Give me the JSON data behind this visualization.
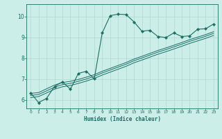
{
  "xlabel": "Humidex (Indice chaleur)",
  "bg_color": "#cceee8",
  "line_color": "#1a6e64",
  "grid_color": "#b0d8d2",
  "xlim": [
    -0.5,
    23.5
  ],
  "ylim": [
    5.6,
    10.6
  ],
  "xticks": [
    0,
    1,
    2,
    3,
    4,
    5,
    6,
    7,
    8,
    9,
    10,
    11,
    12,
    13,
    14,
    15,
    16,
    17,
    18,
    19,
    20,
    21,
    22,
    23
  ],
  "yticks": [
    6,
    7,
    8,
    9,
    10
  ],
  "curve1_x": [
    0,
    1,
    2,
    3,
    4,
    5,
    6,
    7,
    8,
    9,
    10,
    11,
    12,
    13,
    14,
    15,
    16,
    17,
    18,
    19,
    20,
    21,
    22,
    23
  ],
  "curve1_y": [
    6.35,
    5.88,
    6.08,
    6.65,
    6.88,
    6.52,
    7.28,
    7.38,
    7.02,
    9.22,
    10.05,
    10.12,
    10.1,
    9.75,
    9.3,
    9.35,
    9.05,
    9.0,
    9.22,
    9.05,
    9.08,
    9.4,
    9.42,
    9.65
  ],
  "curve2_x": [
    0,
    1,
    2,
    3,
    4,
    5,
    6,
    7,
    8,
    9,
    10,
    11,
    12,
    13,
    14,
    15,
    16,
    17,
    18,
    19,
    20,
    21,
    22,
    23
  ],
  "curve2_y": [
    6.32,
    6.36,
    6.54,
    6.72,
    6.84,
    6.9,
    6.99,
    7.1,
    7.22,
    7.38,
    7.52,
    7.66,
    7.8,
    7.97,
    8.1,
    8.24,
    8.38,
    8.5,
    8.63,
    8.76,
    8.9,
    9.02,
    9.14,
    9.28
  ],
  "curve3_x": [
    0,
    1,
    2,
    3,
    4,
    5,
    6,
    7,
    8,
    9,
    10,
    11,
    12,
    13,
    14,
    15,
    16,
    17,
    18,
    19,
    20,
    21,
    22,
    23
  ],
  "curve3_y": [
    6.22,
    6.27,
    6.44,
    6.62,
    6.74,
    6.8,
    6.9,
    7.01,
    7.14,
    7.3,
    7.44,
    7.58,
    7.72,
    7.89,
    8.02,
    8.16,
    8.3,
    8.42,
    8.55,
    8.68,
    8.82,
    8.94,
    9.06,
    9.2
  ],
  "curve4_x": [
    0,
    1,
    2,
    3,
    4,
    5,
    6,
    7,
    8,
    9,
    10,
    11,
    12,
    13,
    14,
    15,
    16,
    17,
    18,
    19,
    20,
    21,
    22,
    23
  ],
  "curve4_y": [
    6.12,
    6.17,
    6.34,
    6.52,
    6.64,
    6.7,
    6.8,
    6.91,
    7.04,
    7.2,
    7.34,
    7.48,
    7.62,
    7.79,
    7.92,
    8.06,
    8.2,
    8.32,
    8.45,
    8.58,
    8.72,
    8.84,
    8.96,
    9.1
  ]
}
